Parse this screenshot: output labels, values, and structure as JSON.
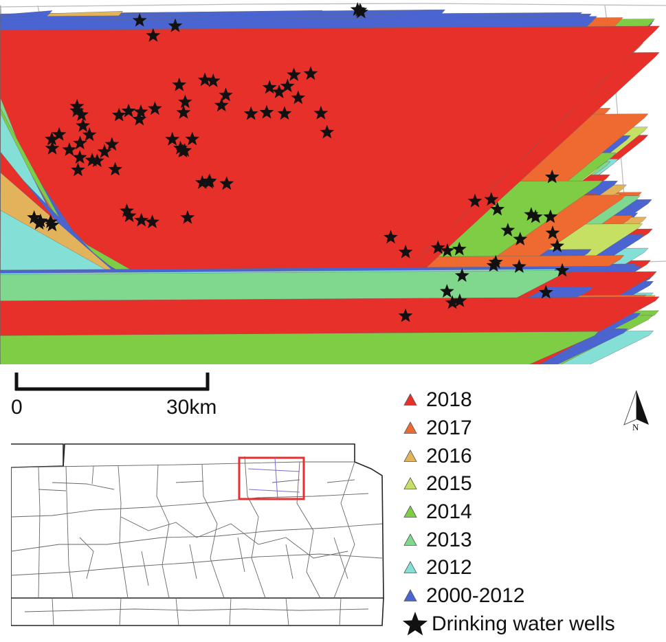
{
  "colors": {
    "y2018": "#e8302a",
    "y2017": "#ef6a30",
    "y2016": "#e3b35c",
    "y2015": "#c5e063",
    "y2014": "#7fcc45",
    "y2013": "#7fd88d",
    "y2012": "#84e0d6",
    "y2000_2012": "#4a64d2",
    "wells": "#111111",
    "boundary": "#bbbbbb",
    "inset_box": "#e53030"
  },
  "scale": {
    "start_label": "0",
    "end_label": "30km"
  },
  "north": {
    "label": "N"
  },
  "legend": [
    {
      "key": "y2018",
      "label": "2018",
      "symbol": "triangle"
    },
    {
      "key": "y2017",
      "label": "2017",
      "symbol": "triangle"
    },
    {
      "key": "y2016",
      "label": "2016",
      "symbol": "triangle"
    },
    {
      "key": "y2015",
      "label": "2015",
      "symbol": "triangle"
    },
    {
      "key": "y2014",
      "label": "2014",
      "symbol": "triangle"
    },
    {
      "key": "y2013",
      "label": "2013",
      "symbol": "triangle"
    },
    {
      "key": "y2012",
      "label": "2012",
      "symbol": "triangle"
    },
    {
      "key": "y2000_2012",
      "label": "2000-2012",
      "symbol": "triangle"
    },
    {
      "key": "wells",
      "label": "Drinking water wells",
      "symbol": "star"
    }
  ]
}
